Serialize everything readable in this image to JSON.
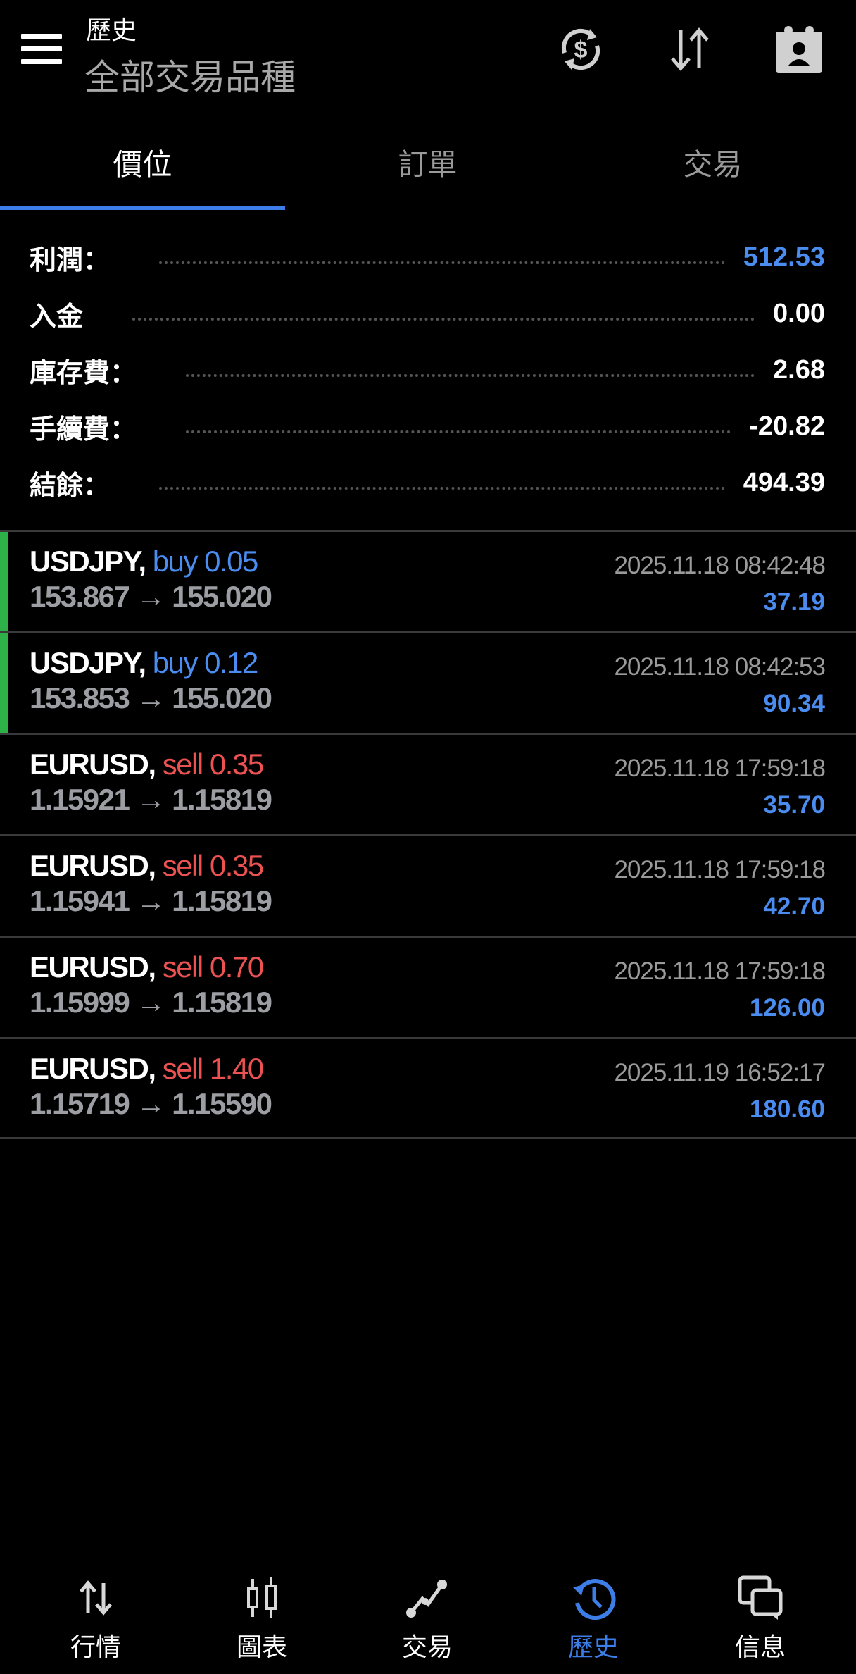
{
  "header": {
    "title": "歷史",
    "subtitle": "全部交易品種",
    "icons": [
      "menu-icon",
      "currency-exchange-icon",
      "sort-icon",
      "contact-card-icon"
    ]
  },
  "tabs": [
    {
      "label": "價位",
      "active": true
    },
    {
      "label": "訂單"
    },
    {
      "label": "交易"
    }
  ],
  "summary": [
    {
      "label": "利潤：",
      "value": "512.53",
      "color": "#4a8cf0"
    },
    {
      "label": "入金",
      "value": "0.00"
    },
    {
      "label": "庫存費：",
      "value": "2.68"
    },
    {
      "label": "手續費：",
      "value": "-20.82"
    },
    {
      "label": "結餘：",
      "value": "494.39"
    }
  ],
  "colors": {
    "buy": "#4a8cf0",
    "sell": "#ec5252",
    "accent": "#3d7de8",
    "open_marker": "#2fb14a"
  },
  "deals": [
    {
      "symbol": "USDJPY,",
      "side": "buy 0.05",
      "type": "buy",
      "prices": "153.867 → 155.020",
      "time": "2025.11.18 08:42:48",
      "profit": "37.19",
      "marker": true
    },
    {
      "symbol": "USDJPY,",
      "side": "buy 0.12",
      "type": "buy",
      "prices": "153.853 → 155.020",
      "time": "2025.11.18 08:42:53",
      "profit": "90.34",
      "marker": true
    },
    {
      "symbol": "EURUSD,",
      "side": "sell 0.35",
      "type": "sell",
      "prices": "1.15921 → 1.15819",
      "time": "2025.11.18 17:59:18",
      "profit": "35.70"
    },
    {
      "symbol": "EURUSD,",
      "side": "sell 0.35",
      "type": "sell",
      "prices": "1.15941 → 1.15819",
      "time": "2025.11.18 17:59:18",
      "profit": "42.70"
    },
    {
      "symbol": "EURUSD,",
      "side": "sell 0.70",
      "type": "sell",
      "prices": "1.15999 → 1.15819",
      "time": "2025.11.18 17:59:18",
      "profit": "126.00"
    },
    {
      "symbol": "EURUSD,",
      "side": "sell 1.40",
      "type": "sell",
      "prices": "1.15719 → 1.15590",
      "time": "2025.11.19 16:52:17",
      "profit": "180.60"
    }
  ],
  "nav": [
    {
      "label": "行情",
      "icon": "quotes-icon"
    },
    {
      "label": "圖表",
      "icon": "chart-icon"
    },
    {
      "label": "交易",
      "icon": "trade-icon"
    },
    {
      "label": "歷史",
      "icon": "history-icon",
      "active": true
    },
    {
      "label": "信息",
      "icon": "messages-icon"
    }
  ]
}
